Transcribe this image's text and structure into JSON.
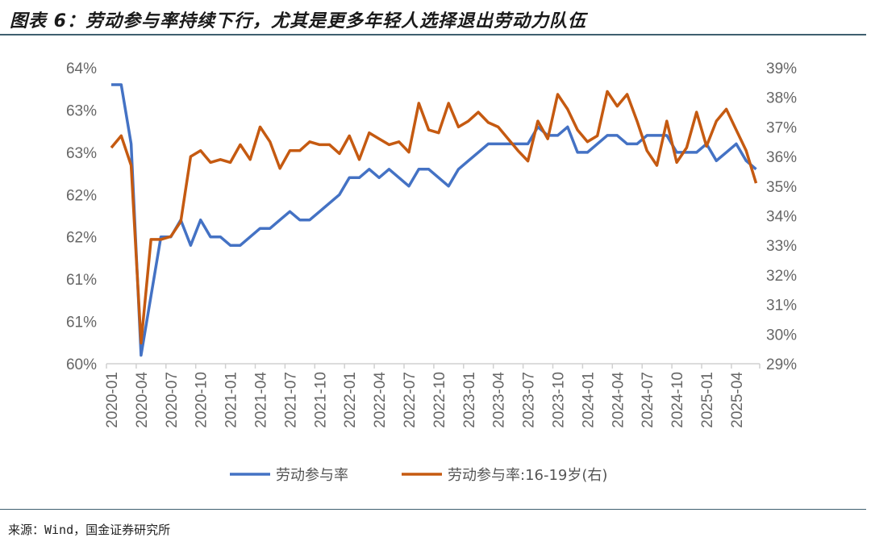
{
  "title": "图表 6：劳动参与率持续下行，尤其是更多年轻人选择退出劳动力队伍",
  "source": "来源：Wind，国金证券研究所",
  "chart_data": {
    "type": "line",
    "title": "图表 6：劳动参与率持续下行，尤其是更多年轻人选择退出劳动力队伍",
    "x_start": "2020-01",
    "x_tick_labels": [
      "2020-01",
      "2020-04",
      "2020-07",
      "2020-10",
      "2021-01",
      "2021-04",
      "2021-07",
      "2021-10",
      "2022-01",
      "2022-04",
      "2022-07",
      "2022-10",
      "2023-01",
      "2023-04",
      "2023-07",
      "2023-10",
      "2024-01",
      "2024-04",
      "2024-07",
      "2024-10",
      "2025-01",
      "2025-04"
    ],
    "y_left": {
      "range": [
        60,
        63.5
      ],
      "step": 0.5,
      "tick_labels": [
        "60%",
        "61%",
        "61%",
        "62%",
        "62%",
        "63%",
        "63%",
        "64%"
      ]
    },
    "y_right": {
      "range": [
        29,
        39
      ],
      "step": 1,
      "tick_labels": [
        "29%",
        "30%",
        "31%",
        "32%",
        "33%",
        "34%",
        "35%",
        "36%",
        "37%",
        "38%",
        "39%"
      ]
    },
    "grid": false,
    "legend_position": "bottom",
    "series": [
      {
        "name": "劳动参与率",
        "axis": "left",
        "color": "#4472C4",
        "values": [
          63.3,
          63.3,
          62.6,
          60.1,
          60.8,
          61.5,
          61.5,
          61.7,
          61.4,
          61.7,
          61.5,
          61.5,
          61.4,
          61.4,
          61.5,
          61.6,
          61.6,
          61.7,
          61.8,
          61.7,
          61.7,
          61.8,
          61.9,
          62.0,
          62.2,
          62.2,
          62.3,
          62.2,
          62.3,
          62.2,
          62.1,
          62.3,
          62.3,
          62.2,
          62.1,
          62.3,
          62.4,
          62.5,
          62.6,
          62.6,
          62.6,
          62.6,
          62.6,
          62.8,
          62.7,
          62.7,
          62.8,
          62.5,
          62.5,
          62.6,
          62.7,
          62.7,
          62.6,
          62.6,
          62.7,
          62.7,
          62.7,
          62.5,
          62.5,
          62.5,
          62.6,
          62.4,
          62.5,
          62.6,
          62.4,
          62.3
        ]
      },
      {
        "name": "劳动参与率:16-19岁(右)",
        "axis": "right",
        "color": "#C55A11",
        "values": [
          36.3,
          36.7,
          35.7,
          29.7,
          33.2,
          33.2,
          33.3,
          33.8,
          36.0,
          36.2,
          35.8,
          35.9,
          35.8,
          36.4,
          35.9,
          37.0,
          36.5,
          35.6,
          36.2,
          36.2,
          36.5,
          36.4,
          36.4,
          36.1,
          36.7,
          35.9,
          36.8,
          36.6,
          36.4,
          36.5,
          36.15,
          37.8,
          36.9,
          36.8,
          37.8,
          37.0,
          37.2,
          37.5,
          37.15,
          37.0,
          36.6,
          36.2,
          35.85,
          37.2,
          36.6,
          38.1,
          37.6,
          36.9,
          36.5,
          36.7,
          38.2,
          37.7,
          38.1,
          37.2,
          36.2,
          35.7,
          37.2,
          35.8,
          36.3,
          37.5,
          36.35,
          37.2,
          37.6,
          36.9,
          36.2,
          35.1
        ]
      }
    ]
  }
}
